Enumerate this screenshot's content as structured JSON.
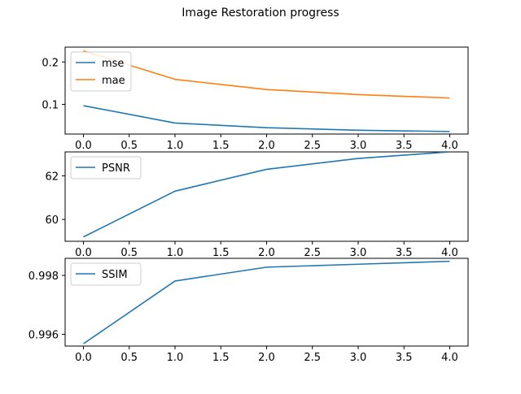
{
  "figure": {
    "title": "Image Restoration progress"
  },
  "chart_data": [
    {
      "type": "line",
      "title": "",
      "xlabel": "",
      "ylabel": "",
      "x": [
        0,
        1,
        2,
        3,
        4
      ],
      "xlim": [
        -0.2,
        4.2
      ],
      "ylim": [
        0.03,
        0.235
      ],
      "xticks": [
        "0.0",
        "0.5",
        "1.0",
        "1.5",
        "2.0",
        "2.5",
        "3.0",
        "3.5",
        "4.0"
      ],
      "xtick_values": [
        0,
        0.5,
        1,
        1.5,
        2,
        2.5,
        3,
        3.5,
        4
      ],
      "yticks": [
        "0.1",
        "0.2"
      ],
      "ytick_values": [
        0.1,
        0.2
      ],
      "grid": false,
      "legend_position": "top-left",
      "series": [
        {
          "name": "mse",
          "color": "#1f77b4",
          "values": [
            0.097,
            0.056,
            0.045,
            0.039,
            0.036
          ]
        },
        {
          "name": "mae",
          "color": "#ff7f0e",
          "values": [
            0.226,
            0.159,
            0.135,
            0.123,
            0.115
          ]
        }
      ]
    },
    {
      "type": "line",
      "title": "",
      "xlabel": "",
      "ylabel": "",
      "x": [
        0,
        1,
        2,
        3,
        4
      ],
      "xlim": [
        -0.2,
        4.2
      ],
      "ylim": [
        59.0,
        63.1
      ],
      "xticks": [
        "0.0",
        "0.5",
        "1.0",
        "1.5",
        "2.0",
        "2.5",
        "3.0",
        "3.5",
        "4.0"
      ],
      "xtick_values": [
        0,
        0.5,
        1,
        1.5,
        2,
        2.5,
        3,
        3.5,
        4
      ],
      "yticks": [
        "60",
        "62"
      ],
      "ytick_values": [
        60,
        62
      ],
      "grid": false,
      "legend_position": "top-left",
      "series": [
        {
          "name": "PSNR",
          "color": "#1f77b4",
          "values": [
            59.2,
            61.3,
            62.3,
            62.8,
            63.1
          ]
        }
      ]
    },
    {
      "type": "line",
      "title": "",
      "xlabel": "",
      "ylabel": "",
      "x": [
        0,
        1,
        2,
        3,
        4
      ],
      "xlim": [
        -0.2,
        4.2
      ],
      "ylim": [
        0.9956,
        0.99858
      ],
      "xticks": [
        "0.0",
        "0.5",
        "1.0",
        "1.5",
        "2.0",
        "2.5",
        "3.0",
        "3.5",
        "4.0"
      ],
      "xtick_values": [
        0,
        0.5,
        1,
        1.5,
        2,
        2.5,
        3,
        3.5,
        4
      ],
      "yticks": [
        "0.996",
        "0.998"
      ],
      "ytick_values": [
        0.996,
        0.998
      ],
      "grid": false,
      "legend_position": "top-left",
      "series": [
        {
          "name": "SSIM",
          "color": "#1f77b4",
          "values": [
            0.99568,
            0.99781,
            0.99828,
            0.99838,
            0.99848
          ]
        }
      ]
    }
  ]
}
